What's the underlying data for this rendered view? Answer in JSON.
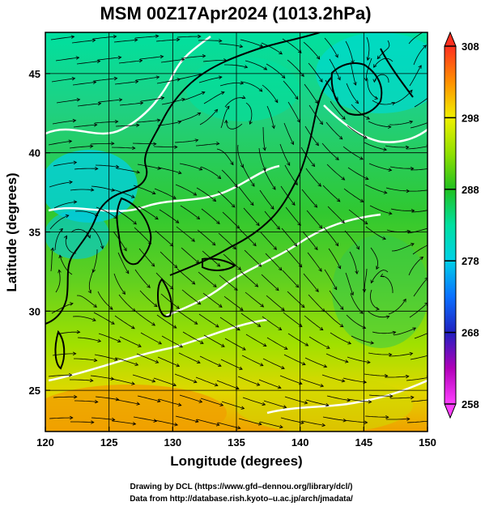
{
  "title": "MSM 00Z17Apr2024 (1013.2hPa)",
  "map": {
    "xlabel": "Longitude (degrees)",
    "ylabel": "Latitude  (degrees)",
    "lon_range": [
      120,
      150
    ],
    "lat_range": [
      22.4,
      47.6
    ],
    "lon_ticks": [
      120,
      125,
      130,
      135,
      140,
      145,
      150
    ],
    "lon_tick_labels": [
      "120",
      "125",
      "130",
      "135",
      "140",
      "145",
      "150"
    ],
    "lat_ticks": [
      25,
      30,
      35,
      40,
      45
    ],
    "lat_tick_labels": [
      "25",
      "30",
      "35",
      "40",
      "45"
    ],
    "gridlines": true,
    "field": "temperature (shaded) with wind streamlines",
    "contour_color": "#ffffff",
    "streamline_color": "#000000"
  },
  "colorbar": {
    "min": 258,
    "max": 308,
    "tick_values": [
      308,
      298,
      288,
      278,
      268,
      258
    ],
    "tick_labels": [
      "308",
      "298",
      "288",
      "278",
      "268",
      "258"
    ],
    "stops": [
      {
        "value": 258,
        "color": "#ff40ff"
      },
      {
        "value": 263,
        "color": "#b000b8"
      },
      {
        "value": 268,
        "color": "#2020c0"
      },
      {
        "value": 273,
        "color": "#0a70ff"
      },
      {
        "value": 278,
        "color": "#00d0e8"
      },
      {
        "value": 283,
        "color": "#00e0a0"
      },
      {
        "value": 288,
        "color": "#20c020"
      },
      {
        "value": 293,
        "color": "#90e000"
      },
      {
        "value": 298,
        "color": "#f0f000"
      },
      {
        "value": 303,
        "color": "#ff9000"
      },
      {
        "value": 308,
        "color": "#ff3020"
      }
    ]
  },
  "credits": {
    "line1": "Drawing by DCL (https://www.gfd–dennou.org/library/dcl/)",
    "line2": "Data from http://database.rish.kyoto–u.ac.jp/arch/jmadata/"
  }
}
